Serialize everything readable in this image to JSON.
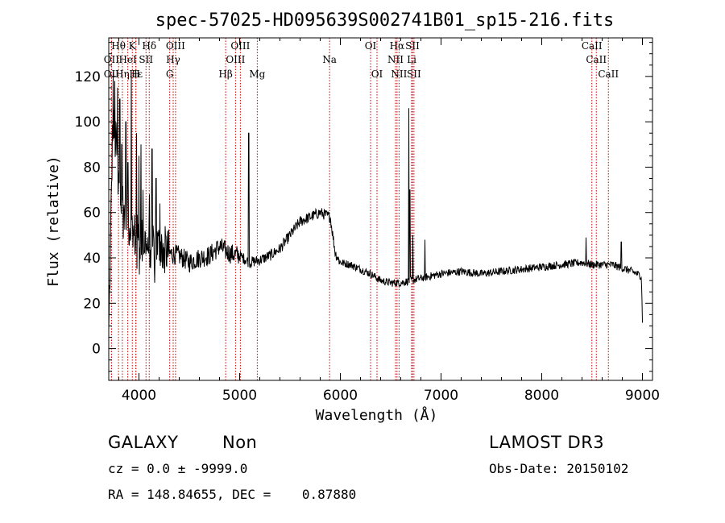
{
  "chart_data": {
    "type": "line",
    "title": "spec-57025-HD095639S002741B01_sp15-216.fits",
    "xlabel": "Wavelength (Å)",
    "ylabel": "Flux (relative)",
    "xlim": [
      3700,
      9100
    ],
    "ylim": [
      -14,
      137
    ],
    "x_ticks": [
      4000,
      5000,
      6000,
      7000,
      8000,
      9000
    ],
    "y_ticks": [
      0,
      20,
      40,
      60,
      80,
      100,
      120
    ],
    "grid": false,
    "line_color": "#000000",
    "marker_color": "#cc0000",
    "continuum_points": [
      [
        3700,
        5
      ],
      [
        3740,
        100
      ],
      [
        3800,
        80
      ],
      [
        3850,
        60
      ],
      [
        3900,
        55
      ],
      [
        3950,
        50
      ],
      [
        4000,
        48
      ],
      [
        4100,
        46
      ],
      [
        4200,
        45
      ],
      [
        4300,
        42
      ],
      [
        4400,
        41
      ],
      [
        4500,
        38
      ],
      [
        4600,
        40
      ],
      [
        4700,
        41
      ],
      [
        4800,
        45
      ],
      [
        4900,
        42
      ],
      [
        5000,
        41
      ],
      [
        5100,
        38
      ],
      [
        5200,
        39
      ],
      [
        5300,
        41
      ],
      [
        5400,
        44
      ],
      [
        5500,
        50
      ],
      [
        5600,
        56
      ],
      [
        5700,
        58
      ],
      [
        5800,
        60
      ],
      [
        5900,
        58
      ],
      [
        5950,
        42
      ],
      [
        6000,
        38
      ],
      [
        6100,
        37
      ],
      [
        6200,
        35
      ],
      [
        6300,
        33
      ],
      [
        6400,
        30
      ],
      [
        6500,
        29
      ],
      [
        6600,
        29
      ],
      [
        6700,
        30
      ],
      [
        6800,
        31
      ],
      [
        6900,
        32
      ],
      [
        7000,
        33
      ],
      [
        7200,
        34
      ],
      [
        7400,
        33
      ],
      [
        7600,
        34
      ],
      [
        7800,
        35
      ],
      [
        8000,
        36
      ],
      [
        8200,
        37
      ],
      [
        8400,
        38
      ],
      [
        8500,
        37
      ],
      [
        8700,
        37
      ],
      [
        8900,
        34
      ],
      [
        8990,
        32
      ],
      [
        9000,
        12
      ]
    ],
    "spikes": [
      [
        3745,
        122
      ],
      [
        3760,
        118
      ],
      [
        3775,
        95
      ],
      [
        3790,
        115
      ],
      [
        3810,
        110
      ],
      [
        3830,
        90
      ],
      [
        3870,
        100
      ],
      [
        3890,
        82
      ],
      [
        3925,
        120
      ],
      [
        3940,
        110
      ],
      [
        3975,
        95
      ],
      [
        4000,
        85
      ],
      [
        4020,
        90
      ],
      [
        4040,
        70
      ],
      [
        4105,
        68
      ],
      [
        4130,
        88
      ],
      [
        4170,
        75
      ],
      [
        4210,
        64
      ],
      [
        5090,
        95
      ],
      [
        6680,
        106
      ],
      [
        6690,
        70
      ],
      [
        6720,
        50
      ],
      [
        6840,
        48
      ],
      [
        8440,
        49
      ],
      [
        8790,
        47
      ]
    ],
    "lines": [
      {
        "label": "OII",
        "x": 3727,
        "row": 2
      },
      {
        "label": "Hθ",
        "x": 3797,
        "row": 0
      },
      {
        "label": "Hη",
        "x": 3835,
        "row": 2
      },
      {
        "label": "OII",
        "x": 3727,
        "row": 1
      },
      {
        "label": "HeI",
        "x": 3889,
        "row": 1
      },
      {
        "label": "K",
        "x": 3934,
        "row": 0
      },
      {
        "label": "H",
        "x": 3969,
        "row": 2
      },
      {
        "label": "Hε",
        "x": 3970,
        "row": 2
      },
      {
        "label": "SII",
        "x": 4070,
        "row": 1
      },
      {
        "label": "Hδ",
        "x": 4102,
        "row": 0
      },
      {
        "label": "Hγ",
        "x": 4340,
        "row": 1
      },
      {
        "label": "G",
        "x": 4305,
        "row": 2
      },
      {
        "label": "OIII",
        "x": 4363,
        "row": 0
      },
      {
        "label": "Hβ",
        "x": 4861,
        "row": 2
      },
      {
        "label": "OIII",
        "x": 4959,
        "row": 1
      },
      {
        "label": "OIII",
        "x": 5007,
        "row": 0
      },
      {
        "label": "Mg",
        "x": 5175,
        "row": 2
      },
      {
        "label": "Na",
        "x": 5893,
        "row": 1
      },
      {
        "label": "OI",
        "x": 6300,
        "row": 0
      },
      {
        "label": "OI",
        "x": 6364,
        "row": 2
      },
      {
        "label": "Hα",
        "x": 6563,
        "row": 0
      },
      {
        "label": "NII",
        "x": 6548,
        "row": 1
      },
      {
        "label": "NII",
        "x": 6583,
        "row": 2
      },
      {
        "label": "SII",
        "x": 6716,
        "row": 0
      },
      {
        "label": "SII",
        "x": 6731,
        "row": 2
      },
      {
        "label": "Li",
        "x": 6708,
        "row": 1
      },
      {
        "label": "CaII",
        "x": 8498,
        "row": 0
      },
      {
        "label": "CaII",
        "x": 8542,
        "row": 1
      },
      {
        "label": "CaII",
        "x": 8662,
        "row": 2
      }
    ]
  },
  "info": {
    "class": "GALAXY",
    "subclass": "Non",
    "survey": "LAMOST DR3",
    "cz": "cz = 0.0 ± -9999.0",
    "obs_date": "Obs-Date: 20150102",
    "coords": "RA = 148.84655, DEC =    0.87880"
  }
}
